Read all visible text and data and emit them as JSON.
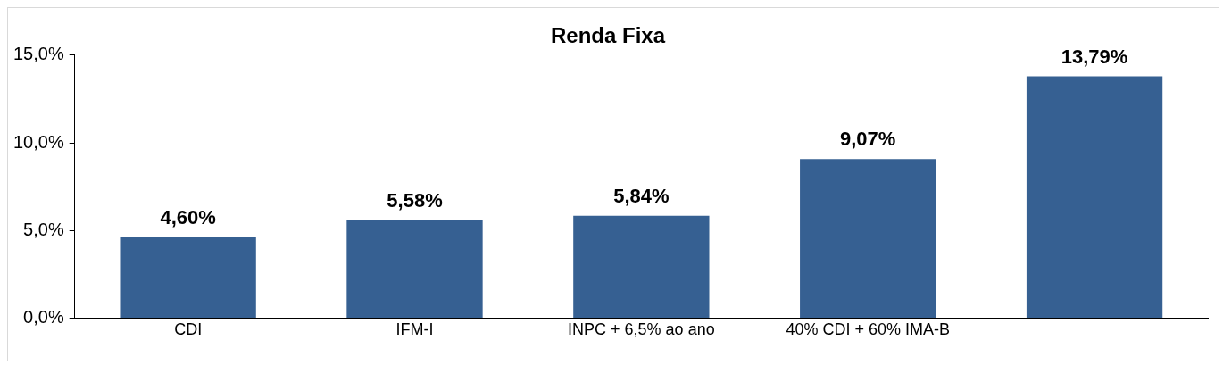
{
  "chart_data": {
    "type": "bar",
    "title": "Renda Fixa",
    "categories": [
      "CDI",
      "IFM-I",
      "INPC + 6,5% ao ano",
      "40% CDI + 60% IMA-B",
      null
    ],
    "values": [
      4.6,
      5.58,
      5.84,
      9.07,
      13.79
    ],
    "value_labels": [
      "4,60%",
      "5,58%",
      "5,84%",
      "9,07%",
      "13,79%"
    ],
    "color": "#366092",
    "ylim": [
      0,
      15
    ],
    "yticks": [
      {
        "value": 0,
        "label": "0,0%"
      },
      {
        "value": 5,
        "label": "5,0%"
      },
      {
        "value": 10,
        "label": "10,0%"
      },
      {
        "value": 15,
        "label": "15,0%"
      }
    ],
    "grid": false,
    "legend": false
  }
}
